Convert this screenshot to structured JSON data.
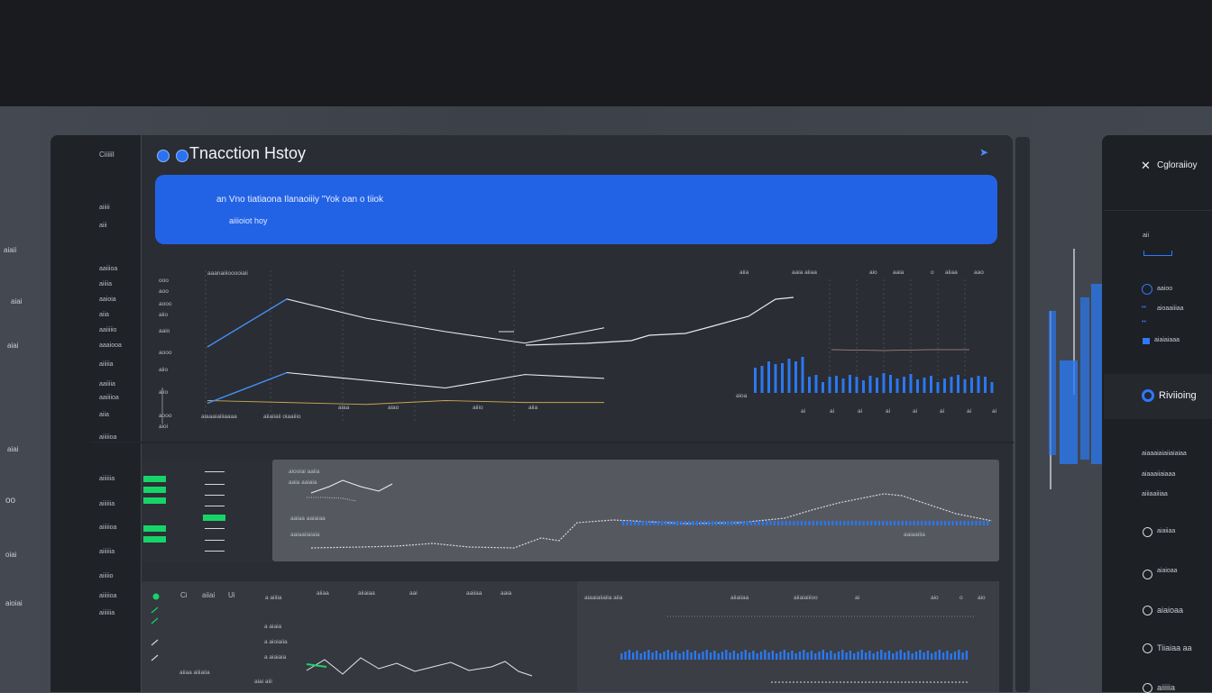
{
  "header": {
    "title": "Tnacction Hstoy"
  },
  "banner": {
    "line1": "an Vno tiatiaona Ilanaoiiiy  \"Yok  oan  o tiiok",
    "line2": "aiiioiot hoy"
  },
  "sidebar": {
    "top_label": "CiiiiiI",
    "items": [
      "aiiiii",
      "aiii",
      "aaiiioa",
      "aiiiia",
      "aaioia",
      "aiia",
      "aaiiiiio",
      "aaaiooa",
      "aiiiiia",
      "aaiiiia",
      "aaiiiioa",
      "aiia",
      "aiiiiioa",
      "aiiiiiia",
      "aiiiiiia",
      "aiiiiioa",
      "aiiiiiia",
      "aiiiiio",
      "aiiiiioa",
      "aiiiiiia"
    ]
  },
  "edge_labels": [
    "aiaii",
    "aiai",
    "aiai",
    "aiai",
    "oo",
    "oiai",
    "aioiai"
  ],
  "chart_top": {
    "label_left": "aaanaiiiooooiaii",
    "y_ticks": [
      "ooo",
      "aoo",
      "aooo",
      "aiio",
      "aaio",
      "aooo",
      "aiio",
      "aiio",
      "aooo",
      "aioi"
    ],
    "x_ticks_left": [
      "aiaaaiaiiiaaaa",
      "aiiaiiaii oiaaiiio",
      "aiaa",
      "aiao",
      "aiiio",
      "aiia"
    ],
    "right_header": [
      "aiia",
      "aaia aiiaa",
      "aio",
      "aaia",
      "o",
      "aiiaa",
      "aao"
    ],
    "right_x_ticks": [
      "ai",
      "ai",
      "ai",
      "ai",
      "ai",
      "ai",
      "ai",
      "ai"
    ],
    "right_y": "aioa"
  },
  "chart_mid": {
    "labels": [
      "aiooiai aaiia",
      "aaia aaiaia",
      "aaiaa aaiaiaa",
      "aaiaaiiaiaia",
      "aaiaaiiia"
    ]
  },
  "chart_bottom": {
    "cols": [
      "Ci",
      "aiiai",
      "Ui",
      "a aiiiia",
      "aiiaa",
      "aiiaiaa",
      "aai",
      "aaiiaa",
      "aaia"
    ],
    "rows": [
      "a aiaia",
      "a aioiaiia",
      "a aiaiaia"
    ],
    "footer": [
      "aiiaa aiiiaiia",
      "aiai aiii"
    ],
    "right_header": [
      "aiaaiaiiaiia aiia",
      "aiiaiiaa",
      "aiiaiaiiioo",
      "ai",
      "aio",
      "o",
      "aio"
    ]
  },
  "right_panel": {
    "title": "Cgloraiioy",
    "items": [
      "aii",
      "aaioo",
      "aioaaiiiaa",
      "aiaiaiaaa",
      "Riviioing",
      "aiaaaiaiaiiaiaiaa",
      "aiaaaiiaiaaa",
      "aiiiaaiiiaa",
      "aiaiiaa",
      "aiaioaa",
      "Tiiaiaa aa",
      "aiiiiia"
    ],
    "active_item": "Riviioing"
  },
  "colors": {
    "accent": "#2263e6",
    "bar_blue": "#2a78f2",
    "bar_green": "#17d46a",
    "bg": "#2a2d33"
  },
  "chart_data": [
    {
      "type": "line",
      "series": [
        {
          "values": [
            4,
            6.5,
            5.5,
            4.8,
            4.2,
            5
          ]
        },
        {
          "values": [
            1.2,
            1.1,
            1,
            1.2,
            1.1,
            1.1
          ]
        },
        {
          "values": [
            2,
            3.6,
            3.2,
            2.8,
            3.5,
            3.3
          ]
        }
      ]
    },
    {
      "type": "bar",
      "values": [
        28,
        30,
        35,
        32,
        33,
        38,
        35,
        40,
        18,
        20,
        12,
        18,
        19,
        16,
        20,
        18,
        14,
        19,
        17,
        22,
        20,
        16,
        18,
        21,
        15,
        17,
        19,
        12,
        16,
        18,
        20,
        15,
        17,
        19,
        18,
        12
      ]
    }
  ]
}
